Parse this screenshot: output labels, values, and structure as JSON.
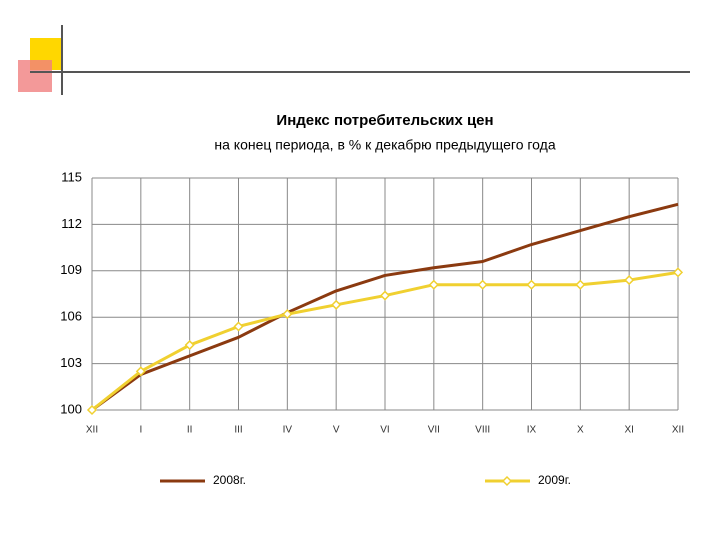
{
  "chart_data": {
    "type": "line",
    "title": "Индекс потребительских цен",
    "subtitle": "на конец периода, в % к декабрю предыдущего года",
    "categories": [
      "XII",
      "I",
      "II",
      "III",
      "IV",
      "V",
      "VI",
      "VII",
      "VIII",
      "IX",
      "X",
      "XI",
      "XII"
    ],
    "series": [
      {
        "name": "2008г.",
        "color": "#8b3a10",
        "values": [
          100,
          102.3,
          103.5,
          104.7,
          106.3,
          107.7,
          108.7,
          109.2,
          109.6,
          110.7,
          111.6,
          112.5,
          113.3
        ]
      },
      {
        "name": "2009г.",
        "color": "#f0d030",
        "marker": "diamond",
        "values": [
          100,
          102.5,
          104.2,
          105.4,
          106.2,
          106.8,
          107.4,
          108.1,
          108.1,
          108.1,
          108.1,
          108.4,
          108.9
        ]
      }
    ],
    "ylim": [
      100,
      115
    ],
    "yticks": [
      100,
      103,
      106,
      109,
      112,
      115
    ],
    "grid": true,
    "legend": "bottom"
  }
}
